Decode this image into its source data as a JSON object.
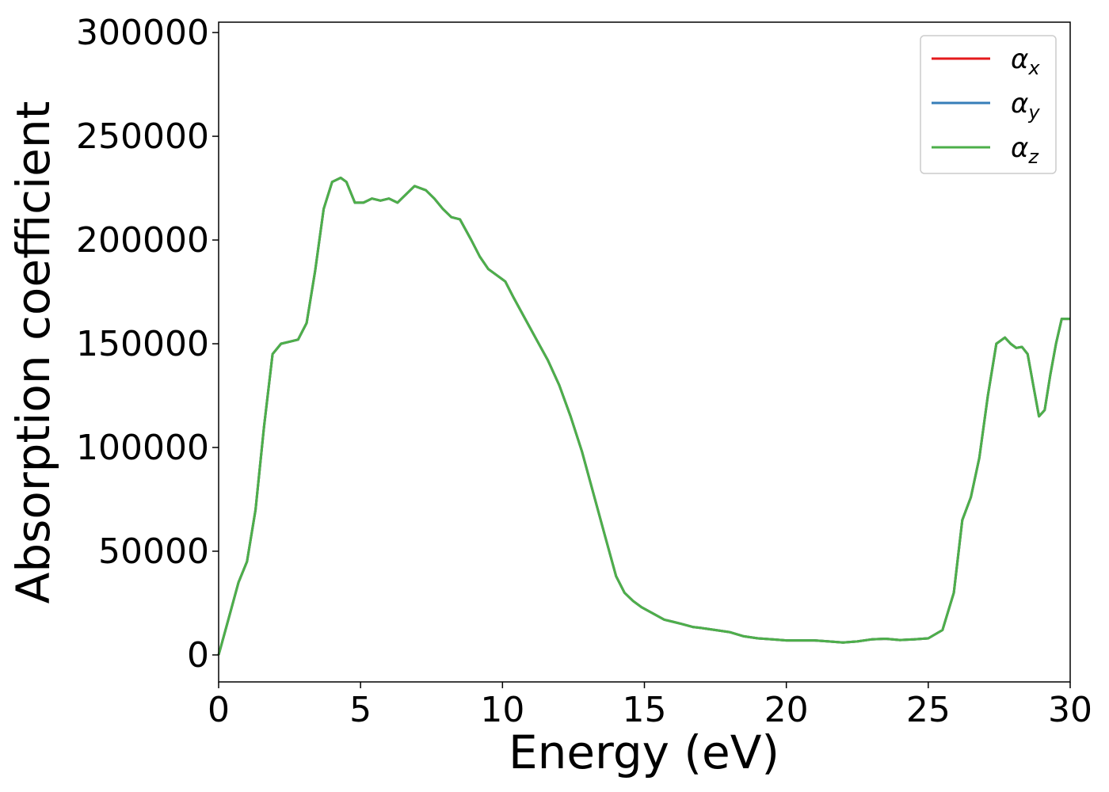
{
  "chart_data": {
    "type": "line",
    "title": "",
    "xlabel": "Energy (eV)",
    "ylabel": "Absorption coefficient",
    "xlim": [
      0,
      30
    ],
    "ylim": [
      -13000,
      305000
    ],
    "xticks": [
      0,
      5,
      10,
      15,
      20,
      25,
      30
    ],
    "yticks": [
      0,
      50000,
      100000,
      150000,
      200000,
      250000,
      300000
    ],
    "xtick_labels": [
      "0",
      "5",
      "10",
      "15",
      "20",
      "25",
      "30"
    ],
    "ytick_labels": [
      "0",
      "50000",
      "100000",
      "150000",
      "200000",
      "250000",
      "300000"
    ],
    "grid": false,
    "legend_position": "top-right",
    "x": [
      0,
      0.3,
      0.7,
      1.0,
      1.3,
      1.6,
      1.9,
      2.2,
      2.5,
      2.8,
      3.1,
      3.4,
      3.7,
      4.0,
      4.3,
      4.5,
      4.8,
      5.1,
      5.4,
      5.7,
      6.0,
      6.3,
      6.6,
      6.9,
      7.3,
      7.6,
      7.9,
      8.2,
      8.5,
      8.9,
      9.2,
      9.5,
      9.8,
      10.1,
      10.4,
      10.8,
      11.2,
      11.6,
      12.0,
      12.4,
      12.8,
      13.2,
      13.6,
      14.0,
      14.3,
      14.6,
      14.9,
      15.3,
      15.7,
      16.0,
      16.3,
      16.7,
      17.0,
      17.5,
      18.0,
      18.5,
      19.0,
      19.5,
      20.0,
      20.5,
      21.0,
      21.5,
      22.0,
      22.5,
      23.0,
      23.5,
      24.0,
      24.5,
      25.0,
      25.5,
      25.9,
      26.2,
      26.5,
      26.8,
      27.1,
      27.4,
      27.7,
      27.9,
      28.1,
      28.3,
      28.5,
      28.7,
      28.9,
      29.1,
      29.3,
      29.5,
      29.7,
      30.0
    ],
    "series": [
      {
        "name": "αx",
        "color": "#e41a1c",
        "values": [
          0,
          15000,
          35000,
          45000,
          70000,
          110000,
          145000,
          150000,
          151000,
          152000,
          160000,
          185000,
          215000,
          228000,
          230000,
          228000,
          218000,
          218000,
          220000,
          219000,
          220000,
          218000,
          222000,
          226000,
          224000,
          220000,
          215000,
          211000,
          210000,
          200000,
          192000,
          186000,
          183000,
          180000,
          172000,
          162000,
          152000,
          142000,
          130000,
          115000,
          98000,
          78000,
          58000,
          38000,
          30000,
          26000,
          23000,
          20000,
          17000,
          16000,
          15000,
          13500,
          13000,
          12000,
          11000,
          9000,
          8000,
          7500,
          7000,
          7000,
          7000,
          6500,
          6000,
          6500,
          7500,
          7800,
          7200,
          7500,
          8000,
          12000,
          30000,
          65000,
          76000,
          95000,
          125000,
          150000,
          153000,
          150000,
          148000,
          148500,
          145000,
          130000,
          115000,
          118000,
          135000,
          150000,
          162000,
          162000
        ]
      },
      {
        "name": "αy",
        "color": "#377eb8",
        "values": [
          0,
          15000,
          35000,
          45000,
          70000,
          110000,
          145000,
          150000,
          151000,
          152000,
          160000,
          185000,
          215000,
          228000,
          230000,
          228000,
          218000,
          218000,
          220000,
          219000,
          220000,
          218000,
          222000,
          226000,
          224000,
          220000,
          215000,
          211000,
          210000,
          200000,
          192000,
          186000,
          183000,
          180000,
          172000,
          162000,
          152000,
          142000,
          130000,
          115000,
          98000,
          78000,
          58000,
          38000,
          30000,
          26000,
          23000,
          20000,
          17000,
          16000,
          15000,
          13500,
          13000,
          12000,
          11000,
          9000,
          8000,
          7500,
          7000,
          7000,
          7000,
          6500,
          6000,
          6500,
          7500,
          7800,
          7200,
          7500,
          8000,
          12000,
          30000,
          65000,
          76000,
          95000,
          125000,
          150000,
          153000,
          150000,
          148000,
          148500,
          145000,
          130000,
          115000,
          118000,
          135000,
          150000,
          162000,
          162000
        ]
      },
      {
        "name": "αz",
        "color": "#4daf4a",
        "values": [
          0,
          15000,
          35000,
          45000,
          70000,
          110000,
          145000,
          150000,
          151000,
          152000,
          160000,
          185000,
          215000,
          228000,
          230000,
          228000,
          218000,
          218000,
          220000,
          219000,
          220000,
          218000,
          222000,
          226000,
          224000,
          220000,
          215000,
          211000,
          210000,
          200000,
          192000,
          186000,
          183000,
          180000,
          172000,
          162000,
          152000,
          142000,
          130000,
          115000,
          98000,
          78000,
          58000,
          38000,
          30000,
          26000,
          23000,
          20000,
          17000,
          16000,
          15000,
          13500,
          13000,
          12000,
          11000,
          9000,
          8000,
          7500,
          7000,
          7000,
          7000,
          6500,
          6000,
          6500,
          7500,
          7800,
          7200,
          7500,
          8000,
          12000,
          30000,
          65000,
          76000,
          95000,
          125000,
          150000,
          153000,
          150000,
          148000,
          148500,
          145000,
          130000,
          115000,
          118000,
          135000,
          150000,
          162000,
          162000
        ]
      }
    ],
    "legend": [
      {
        "symbol": "α",
        "subscript": "x",
        "color": "#e41a1c"
      },
      {
        "symbol": "α",
        "subscript": "y",
        "color": "#377eb8"
      },
      {
        "symbol": "α",
        "subscript": "z",
        "color": "#4daf4a"
      }
    ]
  }
}
